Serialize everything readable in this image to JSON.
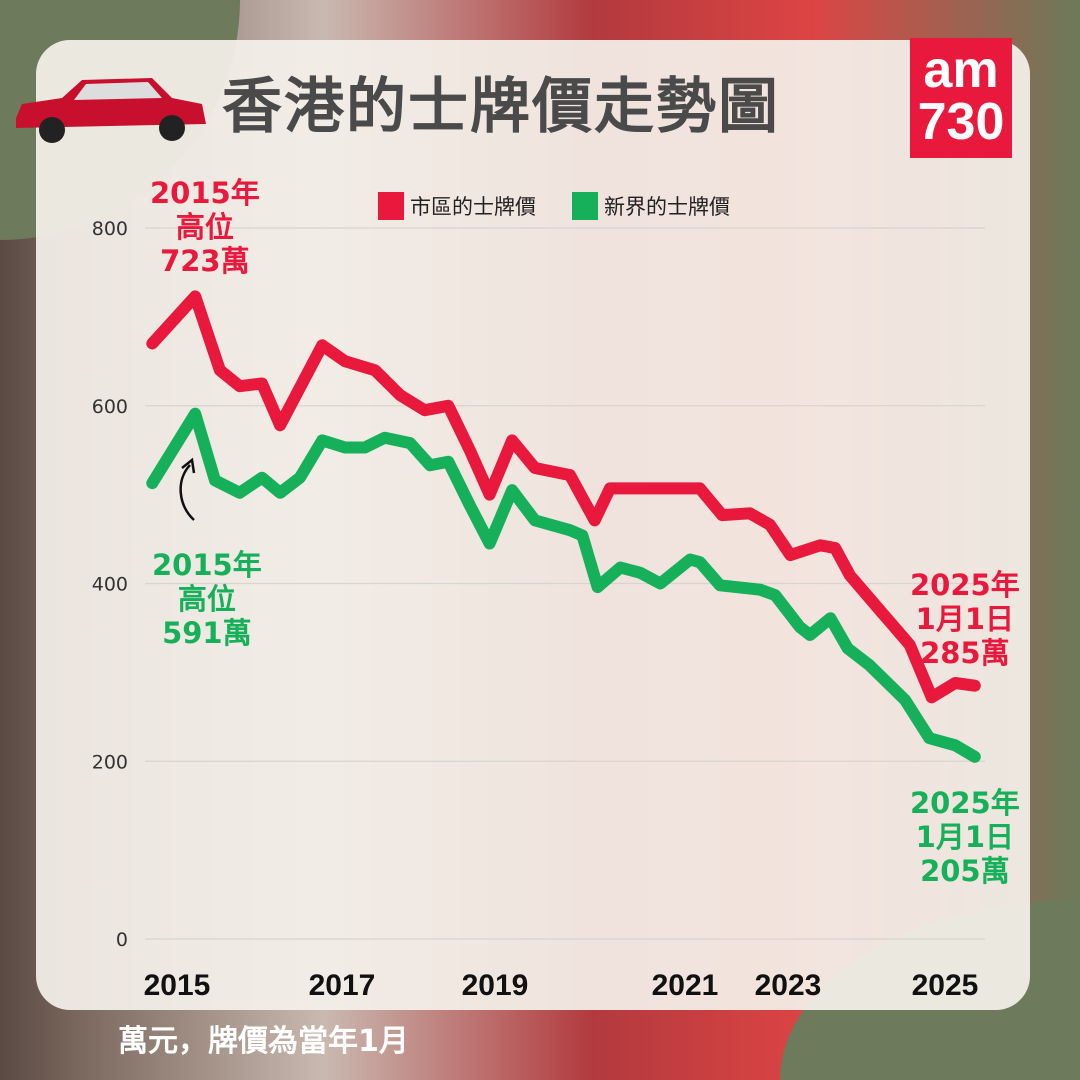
{
  "title": "香港的士牌價走勢圖",
  "logo": {
    "line1": "am",
    "line2": "730"
  },
  "footnote": "萬元，牌價為當年1月",
  "colors": {
    "urban": "#e8193c",
    "nt": "#17b05a"
  },
  "annotations": {
    "urban_high": [
      "2015年",
      "高位",
      "723萬"
    ],
    "nt_high": [
      "2015年",
      "高位",
      "591萬"
    ],
    "urban_latest": [
      "2025年",
      "1月1日",
      "285萬"
    ],
    "nt_latest": [
      "2025年",
      "1月1日",
      "205萬"
    ]
  },
  "chart_data": {
    "type": "line",
    "ylim": [
      0,
      800
    ],
    "yticks": [
      0,
      200,
      400,
      600,
      800
    ],
    "xticks": [
      2015,
      2017,
      2019,
      2021,
      2023,
      2025
    ],
    "grid": true,
    "legend_placement": "top",
    "series": [
      {
        "name": "市區的士牌價",
        "color": "#e8193c",
        "x": [
          2014.7,
          2015.22,
          2015.52,
          2015.76,
          2016.03,
          2016.25,
          2016.76,
          2017.04,
          2017.43,
          2017.76,
          2018.08,
          2018.39,
          2018.67,
          2018.93,
          2019.18,
          2019.42,
          2019.79,
          2020.05,
          2020.21,
          2020.53,
          2020.95,
          2021.29,
          2021.72,
          2022.26,
          2022.65,
          2023.03,
          2023.41,
          2023.6,
          2023.79,
          2024.17,
          2024.55,
          2024.83,
          2025.13,
          2025.38
        ],
        "y": [
          670,
          723,
          640,
          622,
          625,
          578,
          668,
          650,
          640,
          612,
          595,
          600,
          550,
          500,
          561,
          530,
          522,
          471,
          507,
          507,
          507,
          507,
          477,
          479,
          466,
          432,
          443,
          440,
          409,
          370,
          331,
          272,
          288,
          285
        ]
      },
      {
        "name": "新界的士牌價",
        "color": "#17b05a",
        "x": [
          2014.7,
          2015.22,
          2015.46,
          2015.76,
          2016.03,
          2016.25,
          2016.49,
          2016.76,
          2017.04,
          2017.3,
          2017.56,
          2017.89,
          2018.15,
          2018.39,
          2018.67,
          2018.93,
          2019.18,
          2019.42,
          2019.79,
          2019.92,
          2020.08,
          2020.32,
          2020.53,
          2020.74,
          2021.1,
          2021.29,
          2021.68,
          2022.46,
          2022.75,
          2023.15,
          2023.28,
          2023.54,
          2023.76,
          2024.04,
          2024.49,
          2024.8,
          2025.13,
          2025.38
        ],
        "y": [
          513,
          591,
          516,
          502,
          519,
          502,
          519,
          561,
          553,
          553,
          564,
          558,
          533,
          537,
          488,
          445,
          505,
          471,
          460,
          454,
          396,
          418,
          412,
          400,
          427,
          424,
          398,
          393,
          387,
          351,
          342,
          361,
          327,
          308,
          269,
          226,
          218,
          205
        ]
      }
    ]
  }
}
